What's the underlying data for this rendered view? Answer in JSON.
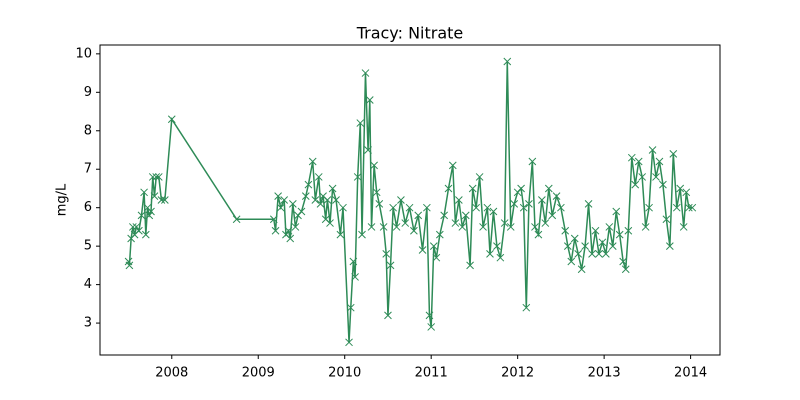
{
  "chart_data": {
    "type": "line",
    "title": "Tracy: Nitrate",
    "ylabel": "mg/L",
    "color": "#2e8b57",
    "marker": "x",
    "x": [
      2007.5,
      2007.51,
      2007.53,
      2007.55,
      2007.57,
      2007.59,
      2007.62,
      2007.65,
      2007.68,
      2007.7,
      2007.72,
      2007.74,
      2007.76,
      2007.78,
      2007.8,
      2007.82,
      2007.85,
      2007.88,
      2007.92,
      2008.0,
      2008.75,
      2009.18,
      2009.2,
      2009.23,
      2009.26,
      2009.3,
      2009.32,
      2009.35,
      2009.37,
      2009.4,
      2009.43,
      2009.46,
      2009.5,
      2009.55,
      2009.58,
      2009.63,
      2009.66,
      2009.7,
      2009.72,
      2009.75,
      2009.78,
      2009.8,
      2009.83,
      2009.86,
      2009.9,
      2009.95,
      2009.98,
      2010.05,
      2010.07,
      2010.1,
      2010.12,
      2010.15,
      2010.18,
      2010.2,
      2010.24,
      2010.27,
      2010.29,
      2010.31,
      2010.34,
      2010.37,
      2010.4,
      2010.45,
      2010.48,
      2010.5,
      2010.53,
      2010.56,
      2010.6,
      2010.65,
      2010.7,
      2010.75,
      2010.8,
      2010.85,
      2010.9,
      2010.95,
      2010.98,
      2011.0,
      2011.03,
      2011.06,
      2011.1,
      2011.15,
      2011.2,
      2011.25,
      2011.28,
      2011.32,
      2011.36,
      2011.4,
      2011.45,
      2011.48,
      2011.52,
      2011.56,
      2011.6,
      2011.65,
      2011.68,
      2011.72,
      2011.76,
      2011.8,
      2011.85,
      2011.88,
      2011.92,
      2011.96,
      2012.0,
      2012.04,
      2012.07,
      2012.1,
      2012.13,
      2012.17,
      2012.2,
      2012.24,
      2012.28,
      2012.32,
      2012.36,
      2012.4,
      2012.45,
      2012.5,
      2012.55,
      2012.58,
      2012.62,
      2012.66,
      2012.7,
      2012.74,
      2012.78,
      2012.82,
      2012.86,
      2012.9,
      2012.94,
      2012.98,
      2013.02,
      2013.06,
      2013.1,
      2013.14,
      2013.18,
      2013.22,
      2013.25,
      2013.28,
      2013.32,
      2013.36,
      2013.4,
      2013.44,
      2013.48,
      2013.52,
      2013.56,
      2013.6,
      2013.64,
      2013.68,
      2013.72,
      2013.76,
      2013.8,
      2013.84,
      2013.88,
      2013.92,
      2013.95,
      2013.98,
      2014.02
    ],
    "values": [
      4.6,
      4.5,
      5.2,
      5.5,
      5.3,
      5.5,
      5.4,
      5.8,
      6.4,
      5.3,
      6.0,
      5.8,
      5.9,
      6.8,
      6.3,
      6.8,
      6.8,
      6.2,
      6.2,
      8.3,
      5.7,
      5.7,
      5.4,
      6.3,
      6.0,
      6.2,
      5.3,
      5.4,
      5.2,
      6.1,
      5.5,
      5.8,
      5.9,
      6.3,
      6.6,
      7.2,
      6.2,
      6.8,
      6.1,
      6.3,
      5.7,
      6.2,
      5.6,
      6.5,
      6.2,
      5.3,
      6.0,
      2.5,
      3.4,
      4.6,
      4.2,
      6.8,
      8.2,
      5.3,
      9.5,
      7.5,
      8.8,
      5.5,
      7.1,
      6.4,
      6.1,
      5.5,
      4.8,
      3.2,
      4.5,
      6.0,
      5.5,
      6.2,
      5.6,
      6.0,
      5.4,
      5.8,
      4.9,
      6.0,
      3.2,
      2.9,
      5.0,
      4.7,
      5.3,
      5.8,
      6.5,
      7.1,
      5.6,
      6.2,
      5.5,
      5.8,
      4.5,
      6.5,
      6.0,
      6.8,
      5.5,
      6.0,
      4.8,
      5.9,
      5.0,
      4.7,
      5.6,
      9.8,
      5.5,
      6.1,
      6.4,
      6.5,
      6.0,
      3.4,
      6.1,
      7.2,
      5.5,
      5.3,
      6.2,
      5.6,
      6.5,
      5.8,
      6.3,
      6.0,
      5.4,
      5.0,
      4.6,
      5.2,
      4.8,
      4.4,
      5.0,
      6.1,
      4.8,
      5.4,
      4.8,
      5.1,
      4.8,
      5.5,
      5.0,
      5.9,
      5.3,
      4.6,
      4.4,
      5.4,
      7.3,
      6.6,
      7.2,
      6.8,
      5.5,
      6.0,
      7.5,
      6.8,
      7.2,
      6.6,
      5.7,
      5.0,
      7.4,
      6.0,
      6.5,
      5.5,
      6.4,
      6.0,
      6.0
    ],
    "xlim": [
      2007.17,
      2014.34
    ],
    "xticks": [
      2008,
      2009,
      2010,
      2011,
      2012,
      2013,
      2014
    ],
    "ylim": [
      2.17,
      10.23
    ],
    "yticks": [
      3,
      4,
      5,
      6,
      7,
      8,
      9,
      10
    ]
  }
}
